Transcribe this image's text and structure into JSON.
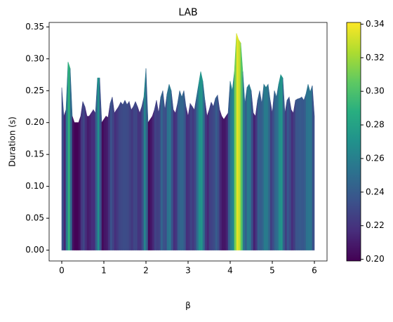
{
  "chart_data": {
    "type": "area",
    "title": "LAB",
    "x_label": "β",
    "y_label": "Duration (s)",
    "colormap": "viridis",
    "x": [
      0,
      0.05,
      0.1,
      0.15,
      0.2,
      0.25,
      0.3,
      0.35,
      0.4,
      0.45,
      0.5,
      0.55,
      0.6,
      0.65,
      0.7,
      0.75,
      0.8,
      0.85,
      0.9,
      0.95,
      1.0,
      1.05,
      1.1,
      1.15,
      1.2,
      1.25,
      1.3,
      1.35,
      1.4,
      1.45,
      1.5,
      1.55,
      1.6,
      1.65,
      1.7,
      1.75,
      1.8,
      1.85,
      1.9,
      1.95,
      2.0,
      2.05,
      2.1,
      2.15,
      2.2,
      2.25,
      2.3,
      2.35,
      2.4,
      2.45,
      2.5,
      2.55,
      2.6,
      2.65,
      2.7,
      2.75,
      2.8,
      2.85,
      2.9,
      2.95,
      3.0,
      3.05,
      3.1,
      3.15,
      3.2,
      3.25,
      3.3,
      3.35,
      3.4,
      3.45,
      3.5,
      3.55,
      3.6,
      3.65,
      3.7,
      3.75,
      3.8,
      3.85,
      3.9,
      3.95,
      4.0,
      4.05,
      4.1,
      4.15,
      4.2,
      4.25,
      4.3,
      4.35,
      4.4,
      4.45,
      4.5,
      4.55,
      4.6,
      4.65,
      4.7,
      4.75,
      4.8,
      4.85,
      4.9,
      4.95,
      5.0,
      5.05,
      5.1,
      5.15,
      5.2,
      5.25,
      5.3,
      5.35,
      5.4,
      5.45,
      5.5,
      5.55,
      5.6,
      5.65,
      5.7,
      5.75,
      5.8,
      5.85,
      5.9,
      5.95,
      6.0
    ],
    "values": [
      0.255,
      0.21,
      0.22,
      0.295,
      0.285,
      0.21,
      0.2,
      0.2,
      0.2,
      0.21,
      0.233,
      0.225,
      0.21,
      0.21,
      0.215,
      0.22,
      0.215,
      0.27,
      0.27,
      0.2,
      0.205,
      0.21,
      0.208,
      0.23,
      0.24,
      0.215,
      0.22,
      0.225,
      0.232,
      0.228,
      0.235,
      0.228,
      0.233,
      0.22,
      0.225,
      0.233,
      0.225,
      0.215,
      0.225,
      0.24,
      0.285,
      0.2,
      0.205,
      0.21,
      0.22,
      0.235,
      0.215,
      0.24,
      0.25,
      0.22,
      0.245,
      0.26,
      0.25,
      0.22,
      0.215,
      0.23,
      0.25,
      0.24,
      0.25,
      0.225,
      0.21,
      0.23,
      0.225,
      0.22,
      0.24,
      0.26,
      0.28,
      0.265,
      0.235,
      0.21,
      0.22,
      0.232,
      0.225,
      0.238,
      0.243,
      0.22,
      0.21,
      0.205,
      0.21,
      0.215,
      0.265,
      0.25,
      0.28,
      0.34,
      0.33,
      0.325,
      0.28,
      0.23,
      0.255,
      0.26,
      0.25,
      0.215,
      0.21,
      0.235,
      0.25,
      0.23,
      0.26,
      0.255,
      0.26,
      0.235,
      0.215,
      0.25,
      0.24,
      0.26,
      0.275,
      0.27,
      0.215,
      0.235,
      0.24,
      0.22,
      0.215,
      0.235,
      0.237,
      0.238,
      0.24,
      0.235,
      0.245,
      0.26,
      0.248,
      0.258,
      0.21
    ],
    "xlim": [
      -0.3,
      6.3
    ],
    "ylim": [
      -0.017,
      0.357
    ],
    "xticks": [
      0,
      1,
      2,
      3,
      4,
      5,
      6
    ],
    "yticks": [
      {
        "value": 0,
        "label": "0.00"
      },
      0.05,
      {
        "value": 0.1,
        "label": "0.10"
      },
      0.15,
      {
        "value": 0.2,
        "label": "0.20"
      },
      0.25,
      {
        "value": 0.3,
        "label": "0.30"
      },
      0.35
    ],
    "clim": [
      0.199,
      0.341
    ],
    "cticks": [
      {
        "value": 0.2,
        "label": "0.20"
      },
      0.22,
      0.24,
      0.26,
      0.28,
      {
        "value": 0.3,
        "label": "0.30"
      },
      0.32,
      0.34
    ]
  }
}
